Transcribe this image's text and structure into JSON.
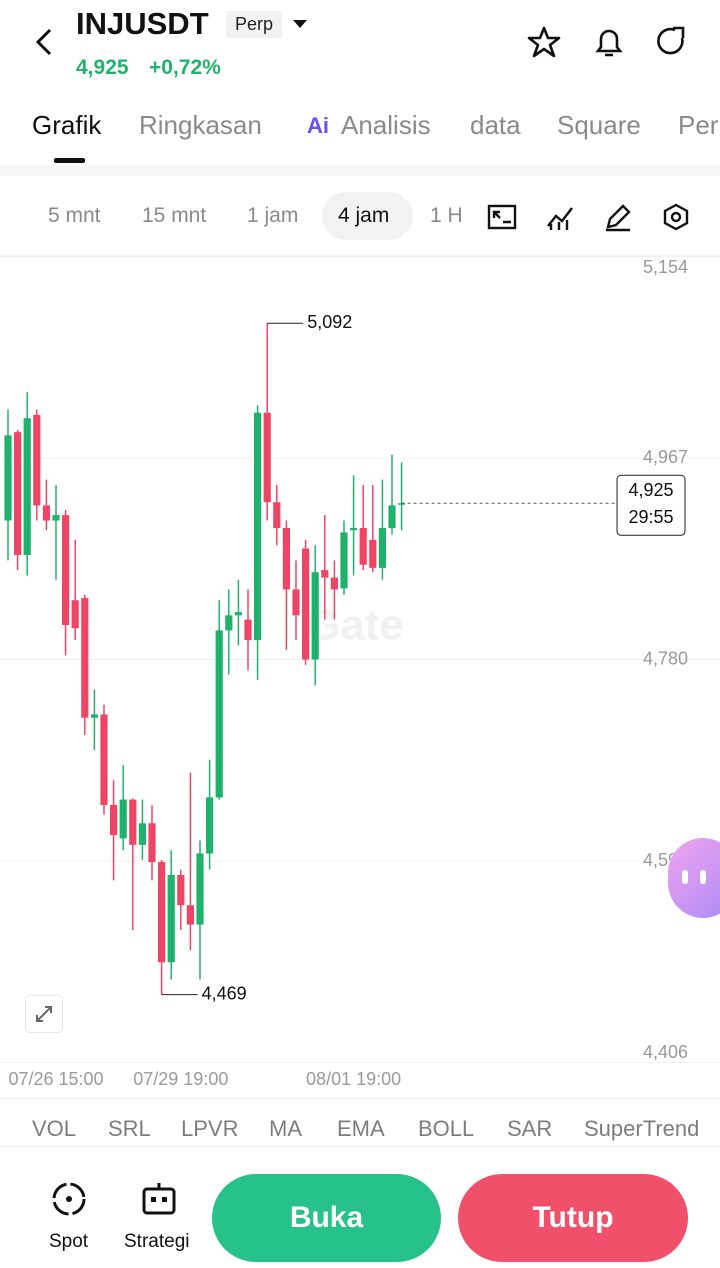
{
  "header": {
    "title": "INJUSDT",
    "badge": "Perp",
    "price": "4,925",
    "change": "+0,72%"
  },
  "tabs": [
    "Grafik",
    "Ringkasan",
    "Analisis",
    "data",
    "Square",
    "Perp"
  ],
  "ai_badge": "Ai",
  "intervals": [
    "5 mnt",
    "15 mnt",
    "1 jam",
    "4 jam",
    "1 H"
  ],
  "watermark": "Gate",
  "indicators": [
    "VOL",
    "SRL",
    "LPVR",
    "MA",
    "EMA",
    "BOLL",
    "SAR",
    "SuperTrend"
  ],
  "footer": {
    "spot": "Spot",
    "strategy": "Strategi",
    "open": "Buka",
    "close": "Tutup"
  },
  "chart_data": {
    "type": "candlestick",
    "up_color": "#20b26c",
    "down_color": "#ef4565",
    "grid": true,
    "ylim": [
      4.406,
      5.154
    ],
    "yticks": [
      {
        "value": 4.406,
        "label": "4,406"
      },
      {
        "value": 4.593,
        "label": "4,593"
      },
      {
        "value": 4.78,
        "label": "4,780"
      },
      {
        "value": 4.967,
        "label": "4,967"
      },
      {
        "value": 5.154,
        "label": "5,154"
      }
    ],
    "categories": [
      null,
      null,
      null,
      null,
      null,
      "07/26 15:00",
      null,
      null,
      null,
      null,
      null,
      null,
      null,
      null,
      null,
      null,
      null,
      null,
      "07/29 19:00",
      null,
      null,
      null,
      null,
      null,
      null,
      null,
      null,
      null,
      null,
      null,
      null,
      null,
      null,
      null,
      null,
      null,
      "08/01 19:00",
      null,
      null,
      null,
      null,
      null
    ],
    "series": [
      {
        "open": [
          4.909,
          4.991,
          4.877,
          5.007,
          4.923,
          4.909,
          4.914,
          4.835,
          4.837,
          4.726,
          4.729,
          4.645,
          4.614,
          4.65,
          4.608,
          4.628,
          4.592,
          4.499,
          4.58,
          4.552,
          4.534,
          4.6,
          4.652,
          4.807,
          4.821,
          4.817,
          4.798,
          5.009,
          4.926,
          4.902,
          4.845,
          4.883,
          4.78,
          4.863,
          4.856,
          4.846,
          4.9,
          4.902,
          4.891,
          4.865,
          4.902,
          4.925
        ],
        "close": [
          4.988,
          4.877,
          5.004,
          4.923,
          4.909,
          4.914,
          4.812,
          4.809,
          4.726,
          4.729,
          4.645,
          4.617,
          4.65,
          4.608,
          4.628,
          4.592,
          4.499,
          4.58,
          4.552,
          4.534,
          4.6,
          4.652,
          4.807,
          4.821,
          4.824,
          4.798,
          5.009,
          4.926,
          4.902,
          4.845,
          4.821,
          4.78,
          4.861,
          4.856,
          4.845,
          4.898,
          4.902,
          4.868,
          4.865,
          4.902,
          4.923,
          4.925
        ],
        "high": [
          5.012,
          4.993,
          5.028,
          5.012,
          4.947,
          4.942,
          4.919,
          4.891,
          4.84,
          4.752,
          4.738,
          4.668,
          4.682,
          4.651,
          4.65,
          4.645,
          4.594,
          4.603,
          4.585,
          4.675,
          4.612,
          4.687,
          4.835,
          4.845,
          4.854,
          4.845,
          5.016,
          5.092,
          4.942,
          4.909,
          4.872,
          4.891,
          4.886,
          4.914,
          4.872,
          4.909,
          4.951,
          4.942,
          4.942,
          4.947,
          4.97,
          4.963
        ],
        "low": [
          4.872,
          4.863,
          4.858,
          4.909,
          4.9,
          4.854,
          4.784,
          4.798,
          4.71,
          4.696,
          4.636,
          4.575,
          4.603,
          4.529,
          4.594,
          4.575,
          4.469,
          4.483,
          4.529,
          4.51,
          4.483,
          4.585,
          4.65,
          4.766,
          4.793,
          4.77,
          4.761,
          4.909,
          4.886,
          4.789,
          4.798,
          4.775,
          4.756,
          4.817,
          4.817,
          4.84,
          4.858,
          4.863,
          4.861,
          4.854,
          4.896,
          4.9
        ]
      }
    ],
    "annotations": [
      {
        "value": 5.092,
        "label": "5,092"
      },
      {
        "value": 4.469,
        "label": "4,469"
      }
    ],
    "current_price": {
      "value": 4.925,
      "label": "4,925"
    },
    "countdown": "29:55"
  }
}
